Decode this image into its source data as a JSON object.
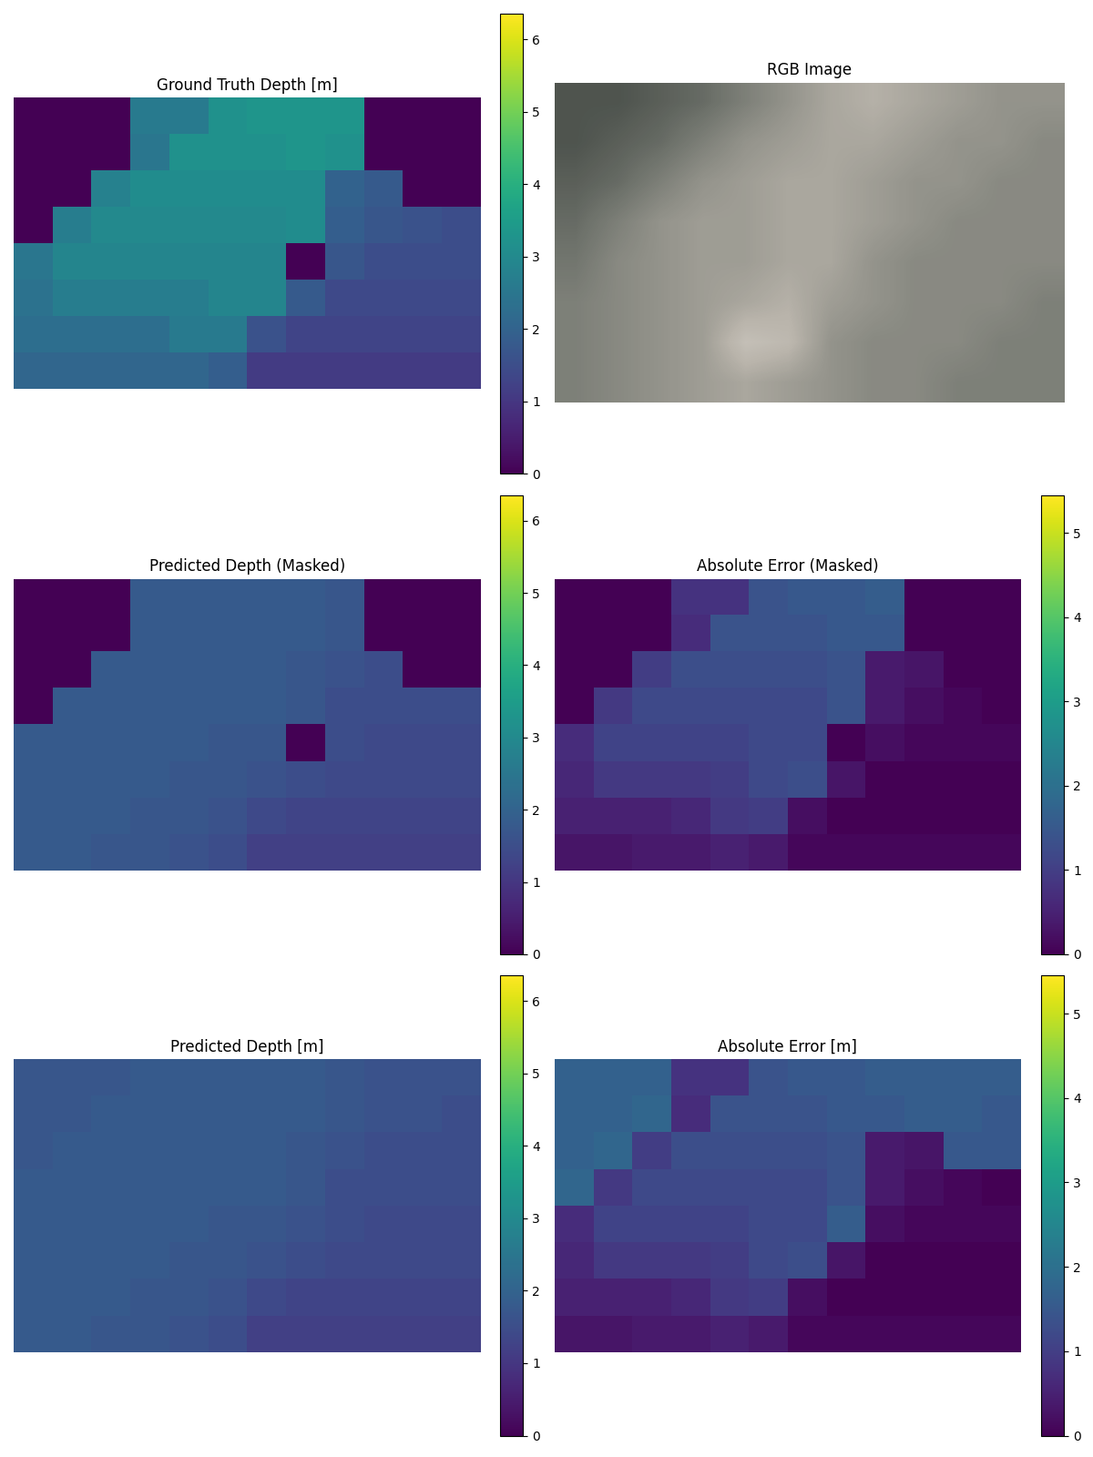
{
  "chart_data": [
    {
      "type": "heatmap",
      "title": "Ground Truth Depth [m]",
      "tick_labels": false,
      "color_range": [
        0,
        6.35
      ],
      "color_ticks": [
        0,
        1,
        2,
        3,
        4,
        5,
        6
      ],
      "cells": [
        [
          0,
          0,
          0,
          2.6,
          2.6,
          3.2,
          3.3,
          3.3,
          3.3,
          0,
          0,
          0
        ],
        [
          0,
          0,
          0,
          2.5,
          3.2,
          3.2,
          3.2,
          3.3,
          3.2,
          0,
          0,
          0
        ],
        [
          0,
          0,
          2.8,
          3.1,
          3.1,
          3.1,
          3.1,
          3.1,
          2.0,
          1.8,
          0,
          0
        ],
        [
          0,
          2.7,
          3.0,
          3.0,
          3.0,
          3.0,
          3.0,
          3.1,
          1.9,
          1.7,
          1.6,
          1.5
        ],
        [
          2.5,
          2.9,
          2.9,
          2.9,
          2.9,
          2.9,
          2.9,
          0,
          1.7,
          1.5,
          1.5,
          1.5
        ],
        [
          2.4,
          2.7,
          2.7,
          2.7,
          2.7,
          2.9,
          2.9,
          1.8,
          1.4,
          1.4,
          1.4,
          1.4
        ],
        [
          2.3,
          2.3,
          2.3,
          2.3,
          2.6,
          2.6,
          1.6,
          1.3,
          1.3,
          1.3,
          1.3,
          1.3
        ],
        [
          2.1,
          2.1,
          2.1,
          2.1,
          2.1,
          1.9,
          1.1,
          1.1,
          1.1,
          1.1,
          1.1,
          1.1
        ]
      ]
    },
    {
      "type": "image",
      "title": "RGB Image",
      "tick_labels": false,
      "cells": [
        [
          0.2,
          0.2,
          0.25,
          0.3,
          0.4,
          0.5,
          0.6,
          0.65,
          0.6,
          0.55,
          0.5,
          0.5
        ],
        [
          0.2,
          0.25,
          0.3,
          0.4,
          0.5,
          0.55,
          0.6,
          0.6,
          0.55,
          0.5,
          0.5,
          0.45
        ],
        [
          0.25,
          0.3,
          0.4,
          0.5,
          0.55,
          0.6,
          0.6,
          0.55,
          0.5,
          0.5,
          0.45,
          0.45
        ],
        [
          0.3,
          0.4,
          0.5,
          0.55,
          0.55,
          0.6,
          0.6,
          0.55,
          0.5,
          0.45,
          0.45,
          0.45
        ],
        [
          0.35,
          0.45,
          0.5,
          0.55,
          0.55,
          0.6,
          0.6,
          0.5,
          0.45,
          0.45,
          0.45,
          0.45
        ],
        [
          0.4,
          0.45,
          0.5,
          0.55,
          0.6,
          0.65,
          0.55,
          0.5,
          0.45,
          0.45,
          0.45,
          0.4
        ],
        [
          0.4,
          0.45,
          0.5,
          0.55,
          0.75,
          0.7,
          0.5,
          0.45,
          0.45,
          0.45,
          0.4,
          0.4
        ],
        [
          0.4,
          0.45,
          0.5,
          0.55,
          0.6,
          0.55,
          0.5,
          0.45,
          0.45,
          0.4,
          0.4,
          0.4
        ]
      ]
    },
    {
      "type": "heatmap",
      "title": "Predicted Depth (Masked)",
      "tick_labels": false,
      "color_range": [
        0,
        6.35
      ],
      "color_ticks": [
        0,
        1,
        2,
        3,
        4,
        5,
        6
      ],
      "cells": [
        [
          0,
          0,
          0,
          1.8,
          1.8,
          1.8,
          1.8,
          1.8,
          1.7,
          0,
          0,
          0
        ],
        [
          0,
          0,
          0,
          1.8,
          1.8,
          1.8,
          1.8,
          1.8,
          1.7,
          0,
          0,
          0
        ],
        [
          0,
          0,
          1.8,
          1.8,
          1.8,
          1.8,
          1.8,
          1.7,
          1.6,
          1.5,
          0,
          0
        ],
        [
          0,
          1.8,
          1.8,
          1.8,
          1.8,
          1.8,
          1.8,
          1.7,
          1.5,
          1.5,
          1.5,
          1.5
        ],
        [
          1.8,
          1.8,
          1.8,
          1.8,
          1.8,
          1.7,
          1.7,
          0,
          1.5,
          1.4,
          1.4,
          1.4
        ],
        [
          1.8,
          1.8,
          1.8,
          1.8,
          1.7,
          1.7,
          1.6,
          1.5,
          1.4,
          1.4,
          1.4,
          1.4
        ],
        [
          1.8,
          1.8,
          1.8,
          1.7,
          1.7,
          1.6,
          1.4,
          1.3,
          1.3,
          1.3,
          1.3,
          1.3
        ],
        [
          1.8,
          1.8,
          1.7,
          1.7,
          1.6,
          1.5,
          1.2,
          1.2,
          1.2,
          1.2,
          1.2,
          1.2
        ]
      ]
    },
    {
      "type": "heatmap",
      "title": "Absolute Error (Masked)",
      "tick_labels": false,
      "color_range": [
        0,
        5.45
      ],
      "color_ticks": [
        0,
        1,
        2,
        3,
        4,
        5
      ],
      "cells": [
        [
          0,
          0,
          0,
          0.8,
          0.8,
          1.4,
          1.5,
          1.5,
          1.6,
          0,
          0,
          0
        ],
        [
          0,
          0,
          0,
          0.7,
          1.4,
          1.4,
          1.4,
          1.5,
          1.5,
          0,
          0,
          0
        ],
        [
          0,
          0,
          1.0,
          1.3,
          1.3,
          1.3,
          1.3,
          1.4,
          0.4,
          0.3,
          0,
          0
        ],
        [
          0,
          0.9,
          1.2,
          1.2,
          1.2,
          1.2,
          1.2,
          1.4,
          0.4,
          0.2,
          0.1,
          0.0
        ],
        [
          0.7,
          1.1,
          1.1,
          1.1,
          1.1,
          1.2,
          1.2,
          0,
          0.2,
          0.1,
          0.1,
          0.1
        ],
        [
          0.6,
          0.9,
          0.9,
          0.9,
          1.0,
          1.2,
          1.3,
          0.3,
          0.0,
          0.0,
          0.0,
          0.0
        ],
        [
          0.5,
          0.5,
          0.5,
          0.6,
          0.9,
          1.0,
          0.2,
          0.0,
          0.0,
          0.0,
          0.0,
          0.0
        ],
        [
          0.3,
          0.3,
          0.4,
          0.4,
          0.5,
          0.4,
          0.1,
          0.1,
          0.1,
          0.1,
          0.1,
          0.1
        ]
      ]
    },
    {
      "type": "heatmap",
      "title": "Predicted Depth [m]",
      "tick_labels": false,
      "color_range": [
        0,
        6.35
      ],
      "color_ticks": [
        0,
        1,
        2,
        3,
        4,
        5,
        6
      ],
      "cells": [
        [
          1.7,
          1.7,
          1.7,
          1.8,
          1.8,
          1.8,
          1.8,
          1.8,
          1.7,
          1.6,
          1.6,
          1.6
        ],
        [
          1.7,
          1.7,
          1.8,
          1.8,
          1.8,
          1.8,
          1.8,
          1.8,
          1.7,
          1.6,
          1.6,
          1.5
        ],
        [
          1.7,
          1.8,
          1.8,
          1.8,
          1.8,
          1.8,
          1.8,
          1.7,
          1.6,
          1.5,
          1.5,
          1.5
        ],
        [
          1.8,
          1.8,
          1.8,
          1.8,
          1.8,
          1.8,
          1.8,
          1.7,
          1.5,
          1.5,
          1.5,
          1.5
        ],
        [
          1.8,
          1.8,
          1.8,
          1.8,
          1.8,
          1.7,
          1.7,
          1.6,
          1.5,
          1.4,
          1.4,
          1.4
        ],
        [
          1.8,
          1.8,
          1.8,
          1.8,
          1.7,
          1.7,
          1.6,
          1.5,
          1.4,
          1.4,
          1.4,
          1.4
        ],
        [
          1.8,
          1.8,
          1.8,
          1.7,
          1.7,
          1.6,
          1.4,
          1.3,
          1.3,
          1.3,
          1.3,
          1.3
        ],
        [
          1.8,
          1.8,
          1.7,
          1.7,
          1.6,
          1.5,
          1.2,
          1.2,
          1.2,
          1.2,
          1.2,
          1.2
        ]
      ]
    },
    {
      "type": "heatmap",
      "title": "Absolute Error [m]",
      "tick_labels": false,
      "color_range": [
        0,
        5.45
      ],
      "color_ticks": [
        0,
        1,
        2,
        3,
        4,
        5
      ],
      "cells": [
        [
          1.7,
          1.7,
          1.7,
          0.8,
          0.8,
          1.4,
          1.5,
          1.5,
          1.6,
          1.6,
          1.6,
          1.6
        ],
        [
          1.7,
          1.7,
          1.8,
          0.7,
          1.4,
          1.4,
          1.4,
          1.5,
          1.5,
          1.6,
          1.6,
          1.5
        ],
        [
          1.7,
          1.8,
          1.0,
          1.3,
          1.3,
          1.3,
          1.3,
          1.4,
          0.4,
          0.3,
          1.5,
          1.5
        ],
        [
          1.8,
          0.9,
          1.2,
          1.2,
          1.2,
          1.2,
          1.2,
          1.4,
          0.4,
          0.2,
          0.1,
          0.0
        ],
        [
          0.7,
          1.1,
          1.1,
          1.1,
          1.1,
          1.2,
          1.2,
          1.6,
          0.2,
          0.1,
          0.1,
          0.1
        ],
        [
          0.6,
          0.9,
          0.9,
          0.9,
          1.0,
          1.2,
          1.3,
          0.3,
          0.0,
          0.0,
          0.0,
          0.0
        ],
        [
          0.5,
          0.5,
          0.5,
          0.6,
          0.9,
          1.0,
          0.2,
          0.0,
          0.0,
          0.0,
          0.0,
          0.0
        ],
        [
          0.3,
          0.3,
          0.4,
          0.4,
          0.5,
          0.4,
          0.1,
          0.1,
          0.1,
          0.1,
          0.1,
          0.1
        ]
      ]
    }
  ]
}
